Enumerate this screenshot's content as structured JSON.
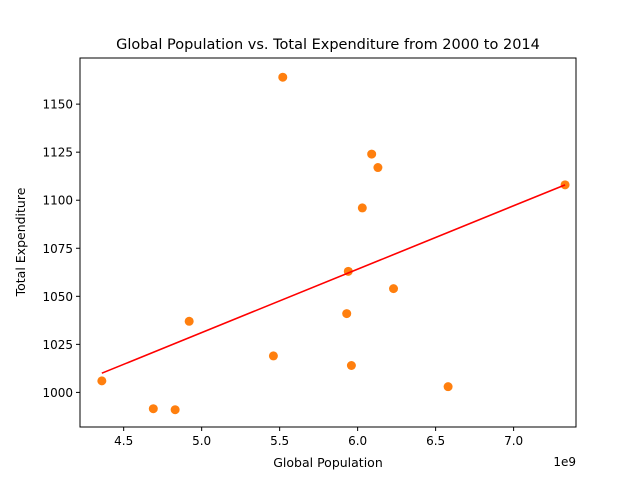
{
  "chart_data": {
    "type": "scatter",
    "title": "Global Population vs. Total Expenditure from 2000 to 2014",
    "xlabel": "Global Population",
    "ylabel": "Total Expenditure",
    "x_offset_label": "1e9",
    "xlim": [
      4220000000.0,
      7400000000.0
    ],
    "ylim": [
      982,
      1174
    ],
    "xticks": [
      4500000000.0,
      5000000000.0,
      5500000000.0,
      6000000000.0,
      6500000000.0,
      7000000000.0
    ],
    "xtick_labels": [
      "4.5",
      "5.0",
      "5.5",
      "6.0",
      "6.5",
      "7.0"
    ],
    "yticks": [
      1000,
      1025,
      1050,
      1075,
      1100,
      1125,
      1150
    ],
    "ytick_labels": [
      "1000",
      "1025",
      "1050",
      "1075",
      "1100",
      "1125",
      "1150"
    ],
    "grid": false,
    "point_color": "#ff7f0e",
    "points": [
      {
        "x": 5520000000.0,
        "y": 1164
      },
      {
        "x": 6090000000.0,
        "y": 1124
      },
      {
        "x": 6130000000.0,
        "y": 1117
      },
      {
        "x": 7330000000.0,
        "y": 1108
      },
      {
        "x": 6030000000.0,
        "y": 1096
      },
      {
        "x": 5940000000.0,
        "y": 1063
      },
      {
        "x": 6230000000.0,
        "y": 1054
      },
      {
        "x": 5930000000.0,
        "y": 1041
      },
      {
        "x": 4920000000.0,
        "y": 1037
      },
      {
        "x": 5460000000.0,
        "y": 1019
      },
      {
        "x": 5960000000.0,
        "y": 1014
      },
      {
        "x": 4360000000.0,
        "y": 1006
      },
      {
        "x": 6580000000.0,
        "y": 1003
      },
      {
        "x": 4690000000.0,
        "y": 991.5
      },
      {
        "x": 4830000000.0,
        "y": 991
      }
    ],
    "trendline": {
      "color": "#ff0000",
      "points": [
        {
          "x": 4360000000.0,
          "y": 1010
        },
        {
          "x": 7330000000.0,
          "y": 1108
        }
      ]
    }
  }
}
